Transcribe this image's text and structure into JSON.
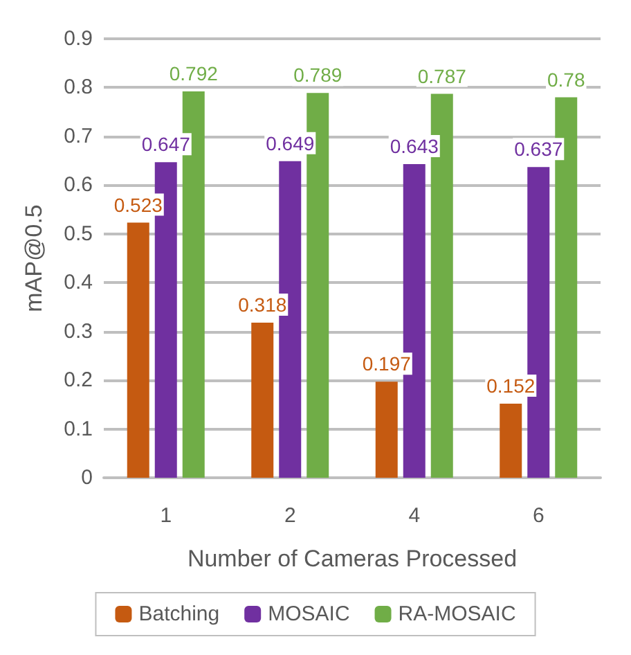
{
  "chart_data": {
    "type": "bar",
    "xlabel": "Number of Cameras Processed",
    "ylabel": "mAP@0.5",
    "categories": [
      "1",
      "2",
      "4",
      "6"
    ],
    "series": [
      {
        "name": "Batching",
        "color": "#c55a11",
        "values": [
          0.523,
          0.318,
          0.197,
          0.152
        ]
      },
      {
        "name": "MOSAIC",
        "color": "#7030a0",
        "values": [
          0.647,
          0.649,
          0.643,
          0.637
        ]
      },
      {
        "name": "RA-MOSAIC",
        "color": "#70ad47",
        "values": [
          0.792,
          0.789,
          0.787,
          0.78
        ]
      }
    ],
    "ylim": [
      0,
      0.9
    ],
    "yticks": [
      0,
      0.1,
      0.2,
      0.3,
      0.4,
      0.5,
      0.6,
      0.7,
      0.8,
      0.9
    ],
    "grid": "y",
    "legend": "bottom",
    "data_labels": true
  }
}
